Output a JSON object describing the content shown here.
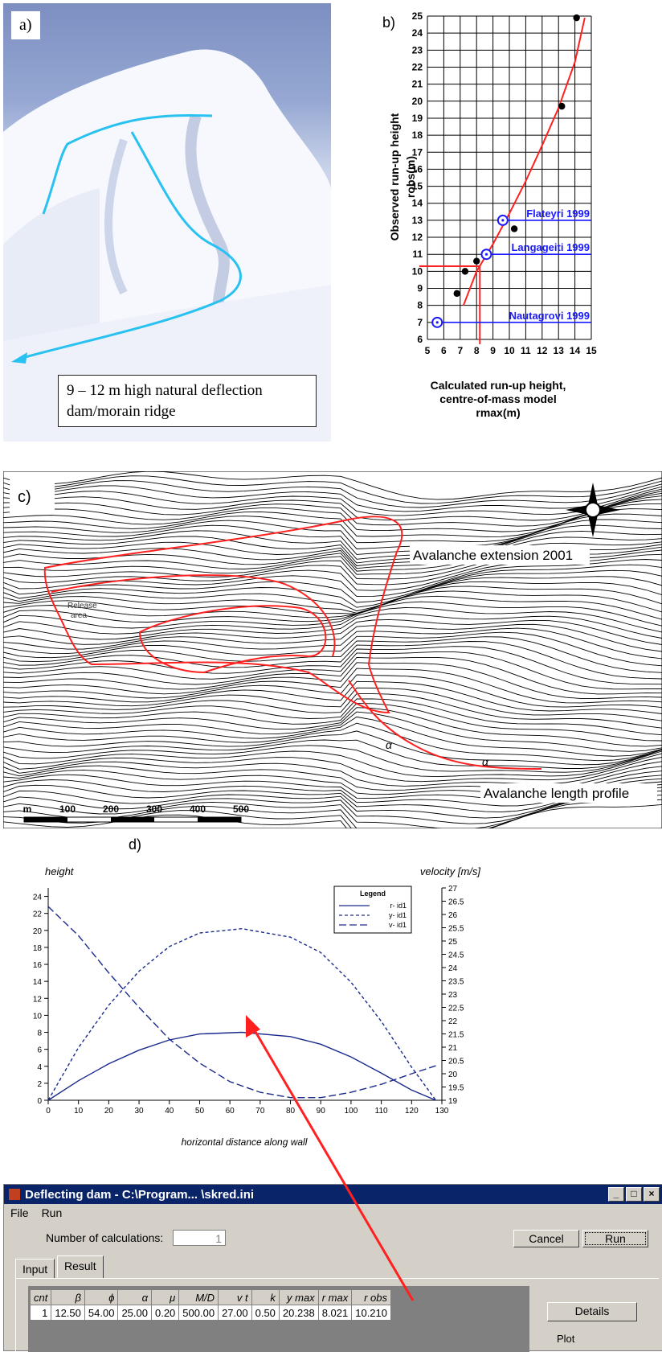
{
  "panel_a": {
    "label": "a)",
    "caption_line1": "9 – 12 m high natural deflection",
    "caption_line2": "dam/morain ridge"
  },
  "panel_b": {
    "label": "b)",
    "chart_data": {
      "type": "scatter",
      "title": "",
      "xlabel_line1": "Calculated run-up height,",
      "xlabel_line2": "centre-of-mass model",
      "xlabel_line3": "rmax(m)",
      "ylabel_line1": "Observed run-up height",
      "ylabel_line2": "robs(m)",
      "xlim": [
        5,
        15
      ],
      "ylim": [
        6,
        25
      ],
      "x_ticks": [
        5,
        6,
        7,
        8,
        9,
        10,
        11,
        12,
        13,
        14,
        15
      ],
      "y_ticks": [
        6,
        7,
        8,
        9,
        10,
        11,
        12,
        13,
        14,
        15,
        16,
        17,
        18,
        19,
        20,
        21,
        22,
        23,
        24,
        25
      ],
      "observed_points": [
        [
          6.8,
          8.7
        ],
        [
          7.3,
          10.0
        ],
        [
          8.0,
          10.6
        ],
        [
          10.3,
          12.5
        ],
        [
          13.2,
          19.7
        ],
        [
          14.1,
          24.9
        ]
      ],
      "named_events": [
        {
          "name": "Nautagrovi 1999",
          "x": 5.6,
          "y": 7.0
        },
        {
          "name": "Langageiti 1999",
          "x": 8.6,
          "y": 11.0
        },
        {
          "name": "Flateyri 1999",
          "x": 9.6,
          "y": 13.0
        }
      ],
      "fit_curve": [
        [
          7.2,
          8.0
        ],
        [
          8.0,
          10.0
        ],
        [
          9.0,
          11.6
        ],
        [
          10.0,
          13.4
        ],
        [
          11.0,
          15.3
        ],
        [
          12.0,
          17.4
        ],
        [
          13.0,
          19.6
        ],
        [
          14.0,
          22.3
        ],
        [
          14.6,
          24.9
        ]
      ],
      "guide_point": {
        "x": 8.2,
        "y": 10.3
      }
    }
  },
  "panel_c": {
    "label": "c)",
    "release_label_1": "Release",
    "release_label_2": "area",
    "extension_label": "Avalanche extension 2001",
    "profile_label": "Avalanche length profile",
    "alpha_label": "α",
    "scale_labels": [
      "m",
      "100",
      "200",
      "300",
      "400",
      "500"
    ]
  },
  "panel_d": {
    "label": "d)",
    "chart_data": {
      "type": "line",
      "title": "",
      "xlabel": "horizontal distance along wall",
      "ylabel_left": "height",
      "ylabel_right": "velocity [m/s]",
      "xlim": [
        0,
        130
      ],
      "ylim_left": [
        0,
        25
      ],
      "ylim_right": [
        19,
        27
      ],
      "x_ticks": [
        0,
        10,
        20,
        30,
        40,
        50,
        60,
        70,
        80,
        90,
        100,
        110,
        120,
        130
      ],
      "y_ticks_left": [
        0,
        2,
        4,
        6,
        8,
        10,
        12,
        14,
        16,
        18,
        20,
        22,
        24
      ],
      "y_ticks_right": [
        "19",
        "19.5",
        "20",
        "20.5",
        "21",
        "21.5",
        "22",
        "22.5",
        "23",
        "23.5",
        "24",
        "24.5",
        "25",
        "25.5",
        "26",
        "26.5",
        "27"
      ],
      "legend": {
        "title": "Legend",
        "entries": [
          "r- id1",
          "y- id1",
          "v- id1"
        ]
      },
      "series": [
        {
          "name": "r- id1",
          "axis": "left",
          "style": "solid",
          "points": [
            [
              0,
              0
            ],
            [
              10,
              2.3
            ],
            [
              20,
              4.3
            ],
            [
              30,
              5.9
            ],
            [
              40,
              7.1
            ],
            [
              50,
              7.8
            ],
            [
              64,
              8.0
            ],
            [
              80,
              7.5
            ],
            [
              90,
              6.6
            ],
            [
              100,
              5.1
            ],
            [
              110,
              3.2
            ],
            [
              120,
              1.2
            ],
            [
              128,
              0
            ]
          ]
        },
        {
          "name": "y- id1",
          "axis": "left",
          "style": "dashed-short",
          "points": [
            [
              0,
              0
            ],
            [
              10,
              6.2
            ],
            [
              20,
              11.2
            ],
            [
              30,
              15.2
            ],
            [
              40,
              18.1
            ],
            [
              50,
              19.7
            ],
            [
              64,
              20.2
            ],
            [
              80,
              19.2
            ],
            [
              90,
              17.4
            ],
            [
              100,
              13.9
            ],
            [
              110,
              9.3
            ],
            [
              120,
              3.9
            ],
            [
              128,
              0
            ]
          ]
        },
        {
          "name": "v- id1",
          "axis": "right",
          "style": "dashed-long",
          "points": [
            [
              0,
              26.3
            ],
            [
              10,
              25.2
            ],
            [
              20,
              23.8
            ],
            [
              30,
              22.5
            ],
            [
              40,
              21.3
            ],
            [
              50,
              20.4
            ],
            [
              60,
              19.7
            ],
            [
              70,
              19.3
            ],
            [
              80,
              19.1
            ],
            [
              90,
              19.1
            ],
            [
              100,
              19.3
            ],
            [
              110,
              19.6
            ],
            [
              120,
              20.0
            ],
            [
              128,
              20.3
            ]
          ]
        }
      ]
    }
  },
  "window": {
    "title": "Deflecting dam - C:\\Program... \\skred.ini",
    "menu": [
      "File",
      "Run"
    ],
    "calc_label": "Number of calculations:",
    "calc_value": "1",
    "cancel_label": "Cancel",
    "run_label": "Run",
    "tabs": [
      "Input",
      "Result"
    ],
    "columns": [
      "cnt",
      "β",
      "ϕ",
      "α",
      "μ",
      "M/D",
      "v t",
      "k",
      "y max",
      "r max",
      "r obs"
    ],
    "rows": [
      [
        "1",
        "12.50",
        "54.00",
        "25.00",
        "0.20",
        "500.00",
        "27.00",
        "0.50",
        "20.238",
        "8.021",
        "10.210"
      ]
    ],
    "details_label": "Details",
    "plot_label": "Plot"
  },
  "colors": {
    "red": "#ff2020",
    "blue": "#1a1aff",
    "navy": "#1a2a8c",
    "cyan": "#29c2f0",
    "titlebar": "#0a246a"
  }
}
